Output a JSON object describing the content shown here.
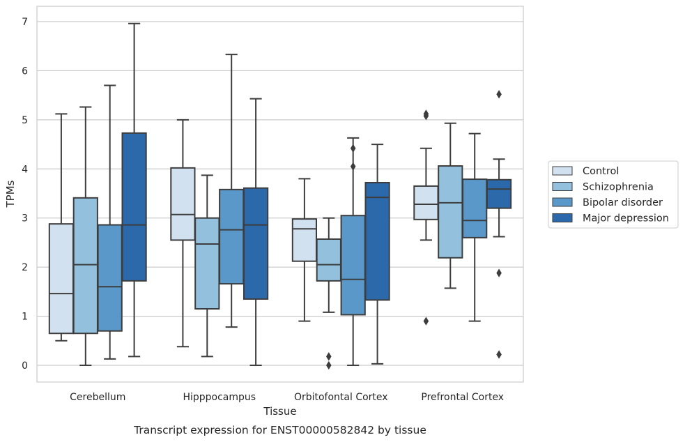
{
  "chart_data": {
    "type": "box",
    "xlabel": "Tissue",
    "ylabel": "TPMs",
    "caption": "Transcript expression for ENST00000582842 by tissue",
    "ylim": [
      -0.33,
      7.33
    ],
    "yticks": [
      0,
      1,
      2,
      3,
      4,
      5,
      6,
      7
    ],
    "grid": "horizontal",
    "legend_position": "right",
    "categories": [
      "Cerebellum",
      "Hipppocampus",
      "Orbitofontal Cortex",
      "Prefrontal Cortex"
    ],
    "series": [
      {
        "name": "Control",
        "color": "#d1e1f0",
        "boxes": [
          {
            "whislo": 0.5,
            "q1": 0.65,
            "med": 1.46,
            "q3": 2.88,
            "whishi": 5.12,
            "fliers": []
          },
          {
            "whislo": 0.38,
            "q1": 2.55,
            "med": 3.07,
            "q3": 4.02,
            "whishi": 5.0,
            "fliers": []
          },
          {
            "whislo": 0.9,
            "q1": 2.12,
            "med": 2.78,
            "q3": 2.98,
            "whishi": 3.8,
            "fliers": []
          },
          {
            "whislo": 2.55,
            "q1": 2.97,
            "med": 3.28,
            "q3": 3.65,
            "whishi": 4.42,
            "fliers": [
              5.08,
              5.12,
              0.9
            ]
          }
        ]
      },
      {
        "name": "Schizophrenia",
        "color": "#92c0dd",
        "boxes": [
          {
            "whislo": 0.0,
            "q1": 0.65,
            "med": 2.05,
            "q3": 3.41,
            "whishi": 5.26,
            "fliers": []
          },
          {
            "whislo": 0.18,
            "q1": 1.15,
            "med": 2.47,
            "q3": 3.0,
            "whishi": 3.87,
            "fliers": []
          },
          {
            "whislo": 1.08,
            "q1": 1.72,
            "med": 2.05,
            "q3": 2.57,
            "whishi": 3.0,
            "fliers": [
              0.18,
              0.0
            ]
          },
          {
            "whislo": 1.57,
            "q1": 2.19,
            "med": 3.31,
            "q3": 4.06,
            "whishi": 4.93,
            "fliers": []
          }
        ]
      },
      {
        "name": "Bipolar disorder",
        "color": "#5998c9",
        "boxes": [
          {
            "whislo": 0.13,
            "q1": 0.7,
            "med": 1.6,
            "q3": 2.86,
            "whishi": 5.7,
            "fliers": []
          },
          {
            "whislo": 0.78,
            "q1": 1.66,
            "med": 2.76,
            "q3": 3.58,
            "whishi": 6.33,
            "fliers": []
          },
          {
            "whislo": 0.0,
            "q1": 1.03,
            "med": 1.75,
            "q3": 3.05,
            "whishi": 4.63,
            "fliers": [
              4.42,
              4.05
            ]
          },
          {
            "whislo": 0.9,
            "q1": 2.6,
            "med": 2.95,
            "q3": 3.79,
            "whishi": 4.72,
            "fliers": []
          }
        ]
      },
      {
        "name": "Major depression",
        "color": "#2c69ab",
        "boxes": [
          {
            "whislo": 0.18,
            "q1": 1.72,
            "med": 2.86,
            "q3": 4.73,
            "whishi": 6.96,
            "fliers": []
          },
          {
            "whislo": 0.0,
            "q1": 1.35,
            "med": 2.86,
            "q3": 3.61,
            "whishi": 5.43,
            "fliers": []
          },
          {
            "whislo": 0.03,
            "q1": 1.33,
            "med": 3.42,
            "q3": 3.72,
            "whishi": 4.5,
            "fliers": []
          },
          {
            "whislo": 2.62,
            "q1": 3.2,
            "med": 3.59,
            "q3": 3.78,
            "whishi": 4.2,
            "fliers": [
              5.52,
              1.88,
              0.22
            ]
          }
        ]
      }
    ]
  }
}
